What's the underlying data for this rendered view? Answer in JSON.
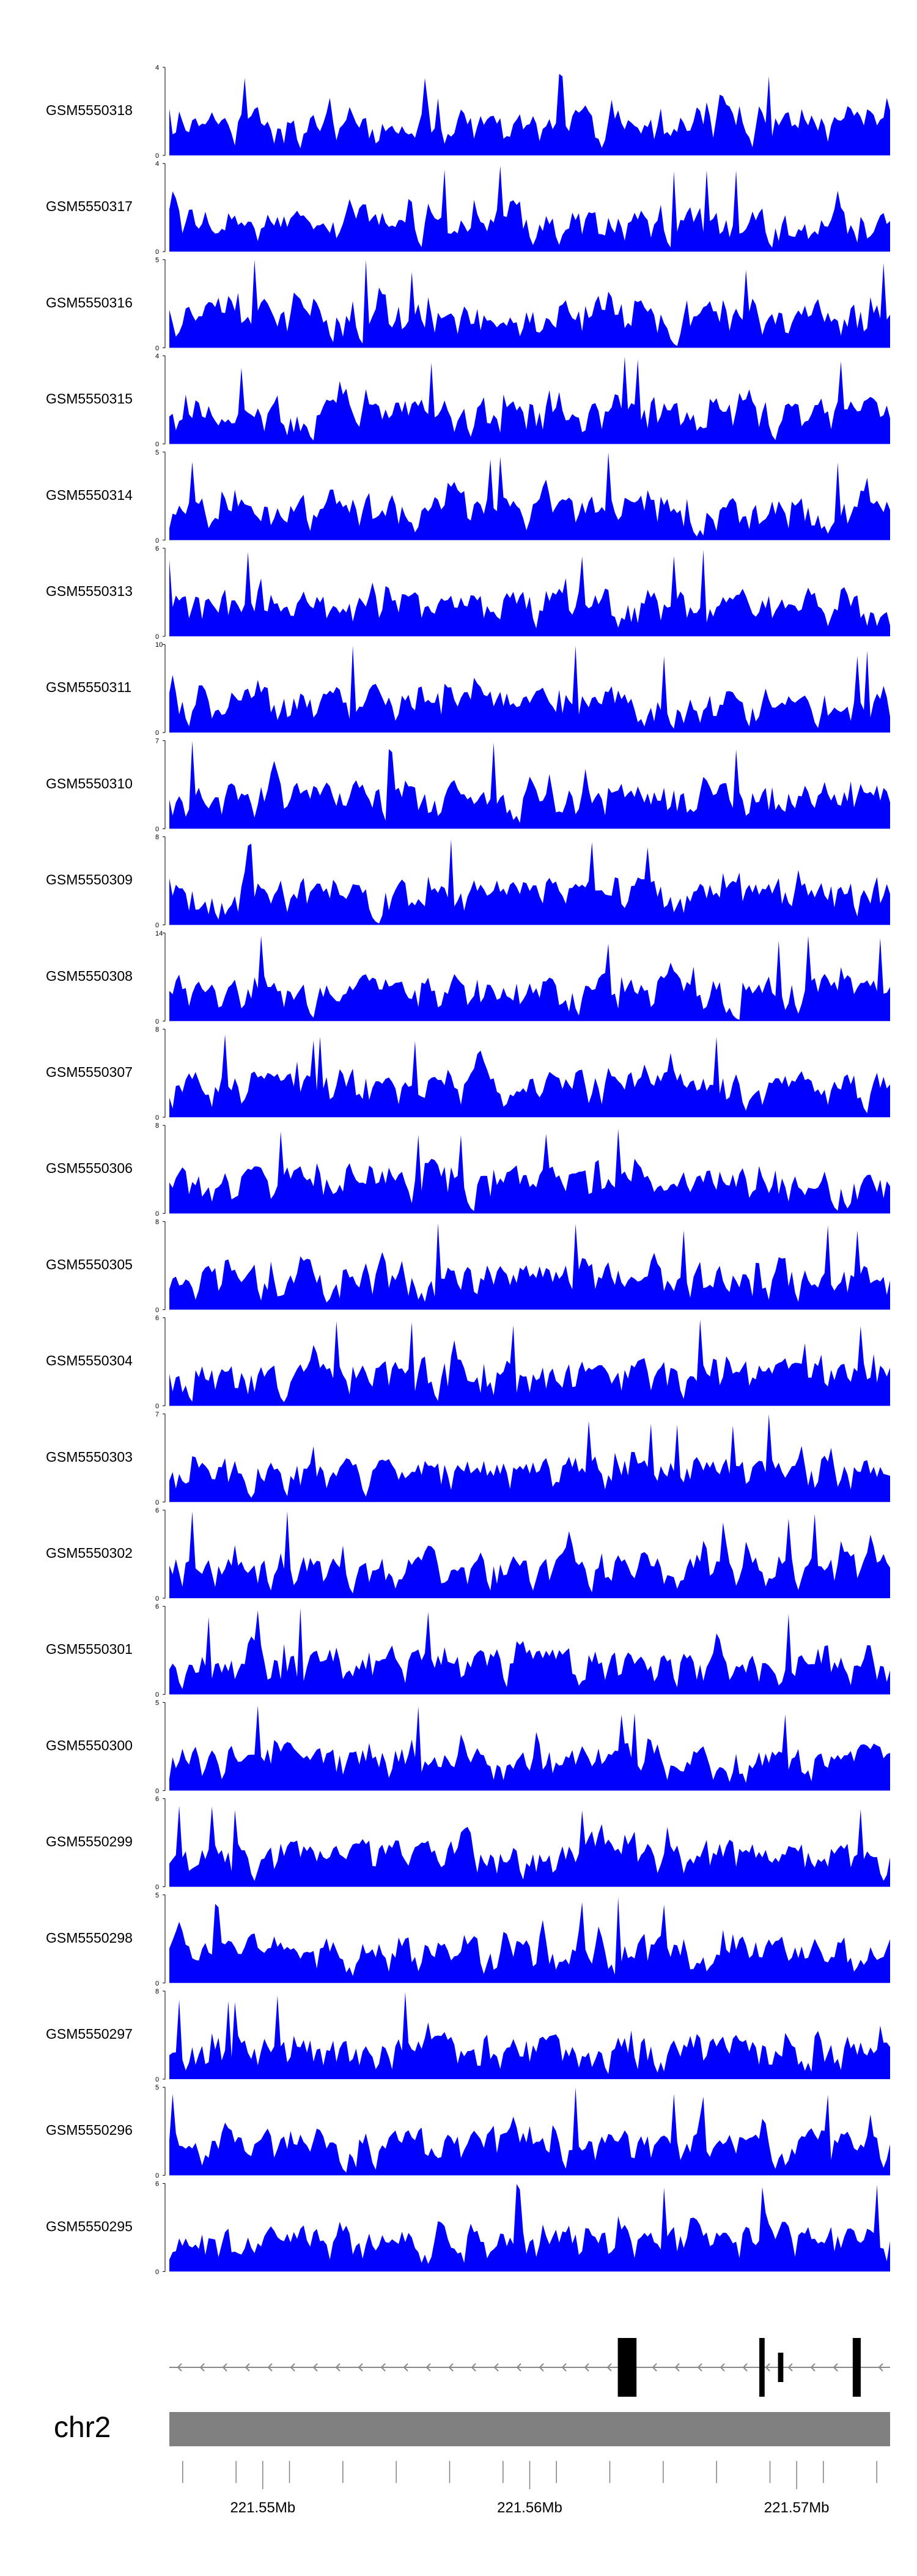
{
  "chart_data": {
    "type": "area",
    "color": "#0000ff",
    "tracks": [
      {
        "name": "GSM5550318",
        "ymax": "4",
        "ymin": "0"
      },
      {
        "name": "GSM5550317",
        "ymax": "4",
        "ymin": "0"
      },
      {
        "name": "GSM5550316",
        "ymax": "5",
        "ymin": "0"
      },
      {
        "name": "GSM5550315",
        "ymax": "4",
        "ymin": "0"
      },
      {
        "name": "GSM5550314",
        "ymax": "5",
        "ymin": "0"
      },
      {
        "name": "GSM5550313",
        "ymax": "6",
        "ymin": "0"
      },
      {
        "name": "GSM5550311",
        "ymax": "10",
        "ymin": "0"
      },
      {
        "name": "GSM5550310",
        "ymax": "7",
        "ymin": "0"
      },
      {
        "name": "GSM5550309",
        "ymax": "8",
        "ymin": "0"
      },
      {
        "name": "GSM5550308",
        "ymax": "14",
        "ymin": "0"
      },
      {
        "name": "GSM5550307",
        "ymax": "8",
        "ymin": "0"
      },
      {
        "name": "GSM5550306",
        "ymax": "8",
        "ymin": "0"
      },
      {
        "name": "GSM5550305",
        "ymax": "8",
        "ymin": "0"
      },
      {
        "name": "GSM5550304",
        "ymax": "6",
        "ymin": "0"
      },
      {
        "name": "GSM5550303",
        "ymax": "7",
        "ymin": "0"
      },
      {
        "name": "GSM5550302",
        "ymax": "6",
        "ymin": "0"
      },
      {
        "name": "GSM5550301",
        "ymax": "6",
        "ymin": "0"
      },
      {
        "name": "GSM5550300",
        "ymax": "5",
        "ymin": "0"
      },
      {
        "name": "GSM5550299",
        "ymax": "6",
        "ymin": "0"
      },
      {
        "name": "GSM5550298",
        "ymax": "5",
        "ymin": "0"
      },
      {
        "name": "GSM5550297",
        "ymax": "8",
        "ymin": "0"
      },
      {
        "name": "GSM5550296",
        "ymax": "5",
        "ymin": "0"
      },
      {
        "name": "GSM5550295",
        "ymax": "6",
        "ymin": "0"
      }
    ],
    "x_range_mb": [
      221.5465,
      221.5735
    ],
    "x_ticks_mb": [
      221.545,
      221.547,
      221.549,
      221.551,
      221.553,
      221.555,
      221.557,
      221.559,
      221.561,
      221.563,
      221.565,
      221.567,
      221.569,
      221.571,
      221.573,
      221.575
    ],
    "x_tick_labels": [
      {
        "value": 221.55,
        "label": "221.55Mb"
      },
      {
        "value": 221.56,
        "label": "221.56Mb"
      },
      {
        "value": 221.57,
        "label": "221.57Mb"
      }
    ],
    "chromosome": "chr2",
    "gene_model": {
      "strand": "-",
      "span_mb": [
        221.5465,
        221.5735
      ],
      "exons_mb": [
        [
          221.5633,
          221.564
        ],
        [
          221.5686,
          221.5688
        ],
        [
          221.5693,
          221.5695
        ],
        [
          221.5721,
          221.5724
        ]
      ]
    }
  }
}
